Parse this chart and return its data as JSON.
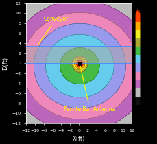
{
  "xlabel": "X(ft)",
  "ylabel": "D(ft)",
  "xlim": [
    -12,
    12
  ],
  "ylim": [
    -12,
    12
  ],
  "conveyor_ymin": 0.0,
  "conveyor_ymax": 3.5,
  "conveyor_color": "#aaaaaa",
  "conveyor_alpha": 0.55,
  "background_color": "#000000",
  "tick_color": "#ffffff",
  "label_color": "#ffffff",
  "annotation_color": "#ffff00",
  "conveyor_label": "Conveyor",
  "antenna_label": "Ferrite Bar Antenna",
  "antenna_x": 0.2,
  "antenna_y": -0.1,
  "levels": [
    -0.5,
    0.0,
    0.5,
    1.0,
    1.5,
    2.0,
    2.5,
    3.0,
    3.5,
    4.0,
    4.5,
    5.0,
    5.5
  ],
  "level_colors": [
    "#000000",
    "#111111",
    "#bbbbbb",
    "#bb66bb",
    "#ee88bb",
    "#9999ee",
    "#66ccee",
    "#44bb44",
    "#aaaa33",
    "#eeee22",
    "#ffaa00",
    "#ff4400",
    "#ff0000"
  ],
  "peak_x1": -0.5,
  "peak_y1": -0.05,
  "peak_x2": 0.9,
  "peak_y2": -0.05,
  "peak_val": 5.3,
  "sx_inner": 1.8,
  "sy_inner": 1.6,
  "sx_outer": 10.5,
  "sy_outer": 8.5,
  "xticks": [
    -12,
    -10,
    -8,
    -6,
    -4,
    -2,
    0,
    2,
    4,
    6,
    8,
    10,
    12
  ],
  "yticks": [
    -12,
    -10,
    -8,
    -6,
    -4,
    -2,
    0,
    2,
    4,
    6,
    8,
    10,
    12
  ]
}
